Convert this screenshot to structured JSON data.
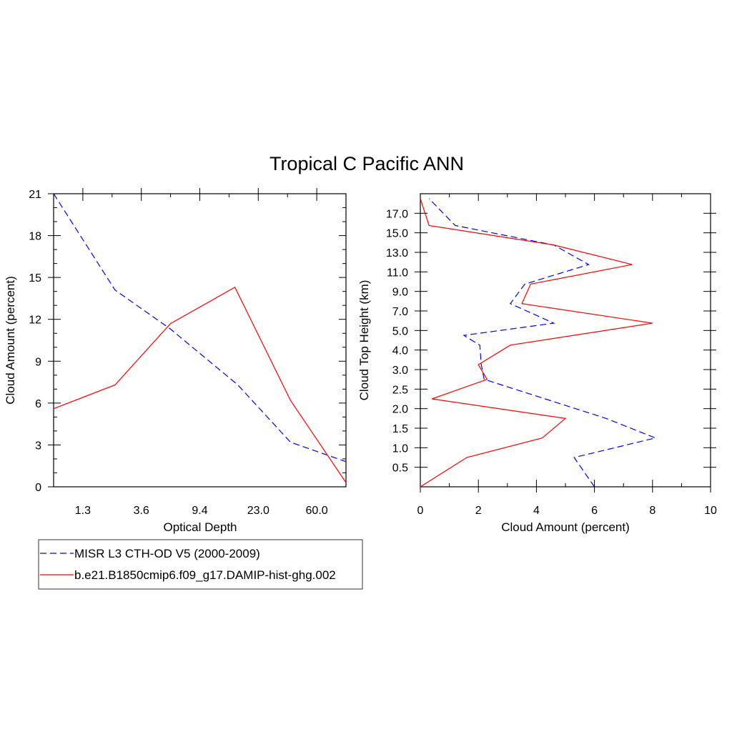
{
  "chart_data": [
    {
      "type": "line",
      "title": "Tropical C Pacific ANN",
      "xlabel": "Optical Depth",
      "ylabel": "Cloud Amount (percent)",
      "x_categories": [
        "",
        "1.3",
        "",
        "3.6",
        "",
        "9.4",
        "",
        "23.0",
        "",
        "60.0",
        ""
      ],
      "x_tick_labels": [
        "1.3",
        "3.6",
        "9.4",
        "23.0",
        "60.0"
      ],
      "xlim": [
        0,
        10
      ],
      "ylim": [
        0,
        21
      ],
      "y_ticks": [
        0,
        3,
        6,
        9,
        12,
        15,
        18,
        21
      ],
      "y_tick_labels": [
        "0",
        "3",
        "6",
        "9",
        "12",
        "15",
        "18",
        "21"
      ],
      "series": [
        {
          "name": "MISR L3 CTH-OD V5 (2000-2009)",
          "color": "#0000ff",
          "style": "dashed",
          "x": [
            0,
            2.1,
            4,
            6.3,
            8.1,
            10
          ],
          "y": [
            21.0,
            14.1,
            11.3,
            7.3,
            3.2,
            1.8
          ]
        },
        {
          "name": "b.e21.B1850cmip6.f09_g17.DAMIP-hist-ghg.002",
          "color": "#ff0000",
          "style": "solid",
          "x": [
            0,
            2.1,
            4,
            6.2,
            8.1,
            10
          ],
          "y": [
            5.6,
            7.3,
            11.7,
            14.3,
            6.2,
            0.3
          ]
        }
      ]
    },
    {
      "type": "line",
      "xlabel": "Cloud Amount (percent)",
      "ylabel": "Cloud Top Height (km)",
      "xlim": [
        0,
        10
      ],
      "x_ticks": [
        0,
        2,
        4,
        6,
        8,
        10
      ],
      "x_tick_labels": [
        "0",
        "2",
        "4",
        "6",
        "8",
        "10"
      ],
      "y_levels": [
        0.25,
        0.5,
        1.0,
        1.5,
        2.0,
        2.5,
        3.0,
        4.0,
        5.0,
        7.0,
        9.0,
        11.0,
        13.0,
        15.0,
        17.0,
        18.0
      ],
      "y_tick_labels": [
        "0.5",
        "1.0",
        "1.5",
        "2.0",
        "2.5",
        "3.0",
        "4.0",
        "5.0",
        "7.0",
        "9.0",
        "11.0",
        "13.0",
        "15.0",
        "17.0"
      ],
      "series": [
        {
          "name": "MISR L3 CTH-OD V5 (2000-2009)",
          "color": "#0000ff",
          "style": "dashed",
          "x": [
            6.0,
            5.3,
            8.1,
            6.4,
            2.2,
            2.1,
            2.05,
            1.5,
            4.6,
            3.1,
            3.6,
            5.8,
            4.6,
            1.2,
            0.3
          ],
          "y": [
            0.25,
            0.75,
            1.25,
            1.75,
            2.75,
            3.25,
            4.25,
            4.75,
            5.75,
            7.75,
            9.75,
            11.75,
            13.75,
            15.75,
            17.75
          ]
        },
        {
          "name": "b.e21.B1850cmip6.f09_g17.DAMIP-hist-ghg.002",
          "color": "#ff0000",
          "style": "solid",
          "x": [
            0.0,
            1.6,
            4.2,
            5.0,
            0.4,
            2.3,
            2.0,
            3.1,
            8.0,
            3.5,
            3.8,
            7.3,
            4.6,
            0.3,
            0.0
          ],
          "y": [
            0.25,
            0.75,
            1.25,
            1.75,
            2.25,
            2.75,
            3.25,
            4.25,
            5.75,
            7.75,
            9.75,
            11.75,
            13.75,
            15.75,
            17.75
          ]
        }
      ]
    }
  ],
  "legend": {
    "items": [
      {
        "label": "MISR L3 CTH-OD V5 (2000-2009)",
        "color": "#0000ff",
        "style": "dashed"
      },
      {
        "label": "b.e21.B1850cmip6.f09_g17.DAMIP-hist-ghg.002",
        "color": "#ff0000",
        "style": "solid"
      }
    ]
  }
}
